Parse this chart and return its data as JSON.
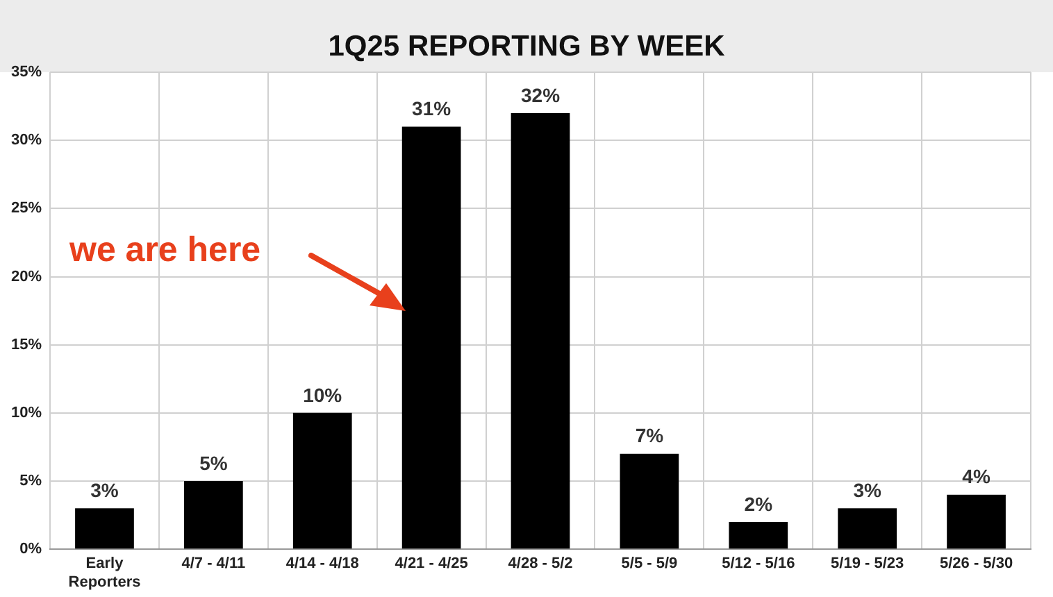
{
  "chart_data": {
    "type": "bar",
    "title": "1Q25 REPORTING BY WEEK",
    "categories": [
      "Early Reporters",
      "4/7 - 4/11",
      "4/14 - 4/18",
      "4/21 - 4/25",
      "4/28 - 5/2",
      "5/5 - 5/9",
      "5/12 - 5/16",
      "5/19 - 5/23",
      "5/26 - 5/30"
    ],
    "values": [
      3,
      5,
      10,
      31,
      32,
      7,
      2,
      3,
      4
    ],
    "value_labels": [
      "3%",
      "5%",
      "10%",
      "31%",
      "32%",
      "7%",
      "2%",
      "3%",
      "4%"
    ],
    "color": "#000000",
    "ylim": [
      0,
      35
    ],
    "yticks": [
      {
        "value": 0,
        "label": "0%"
      },
      {
        "value": 5,
        "label": "5%"
      },
      {
        "value": 10,
        "label": "10%"
      },
      {
        "value": 15,
        "label": "15%"
      },
      {
        "value": 20,
        "label": "20%"
      },
      {
        "value": 25,
        "label": "25%"
      },
      {
        "value": 30,
        "label": "30%"
      },
      {
        "value": 35,
        "label": "35%"
      }
    ],
    "grid": true,
    "annotations": [
      "we are here"
    ]
  }
}
